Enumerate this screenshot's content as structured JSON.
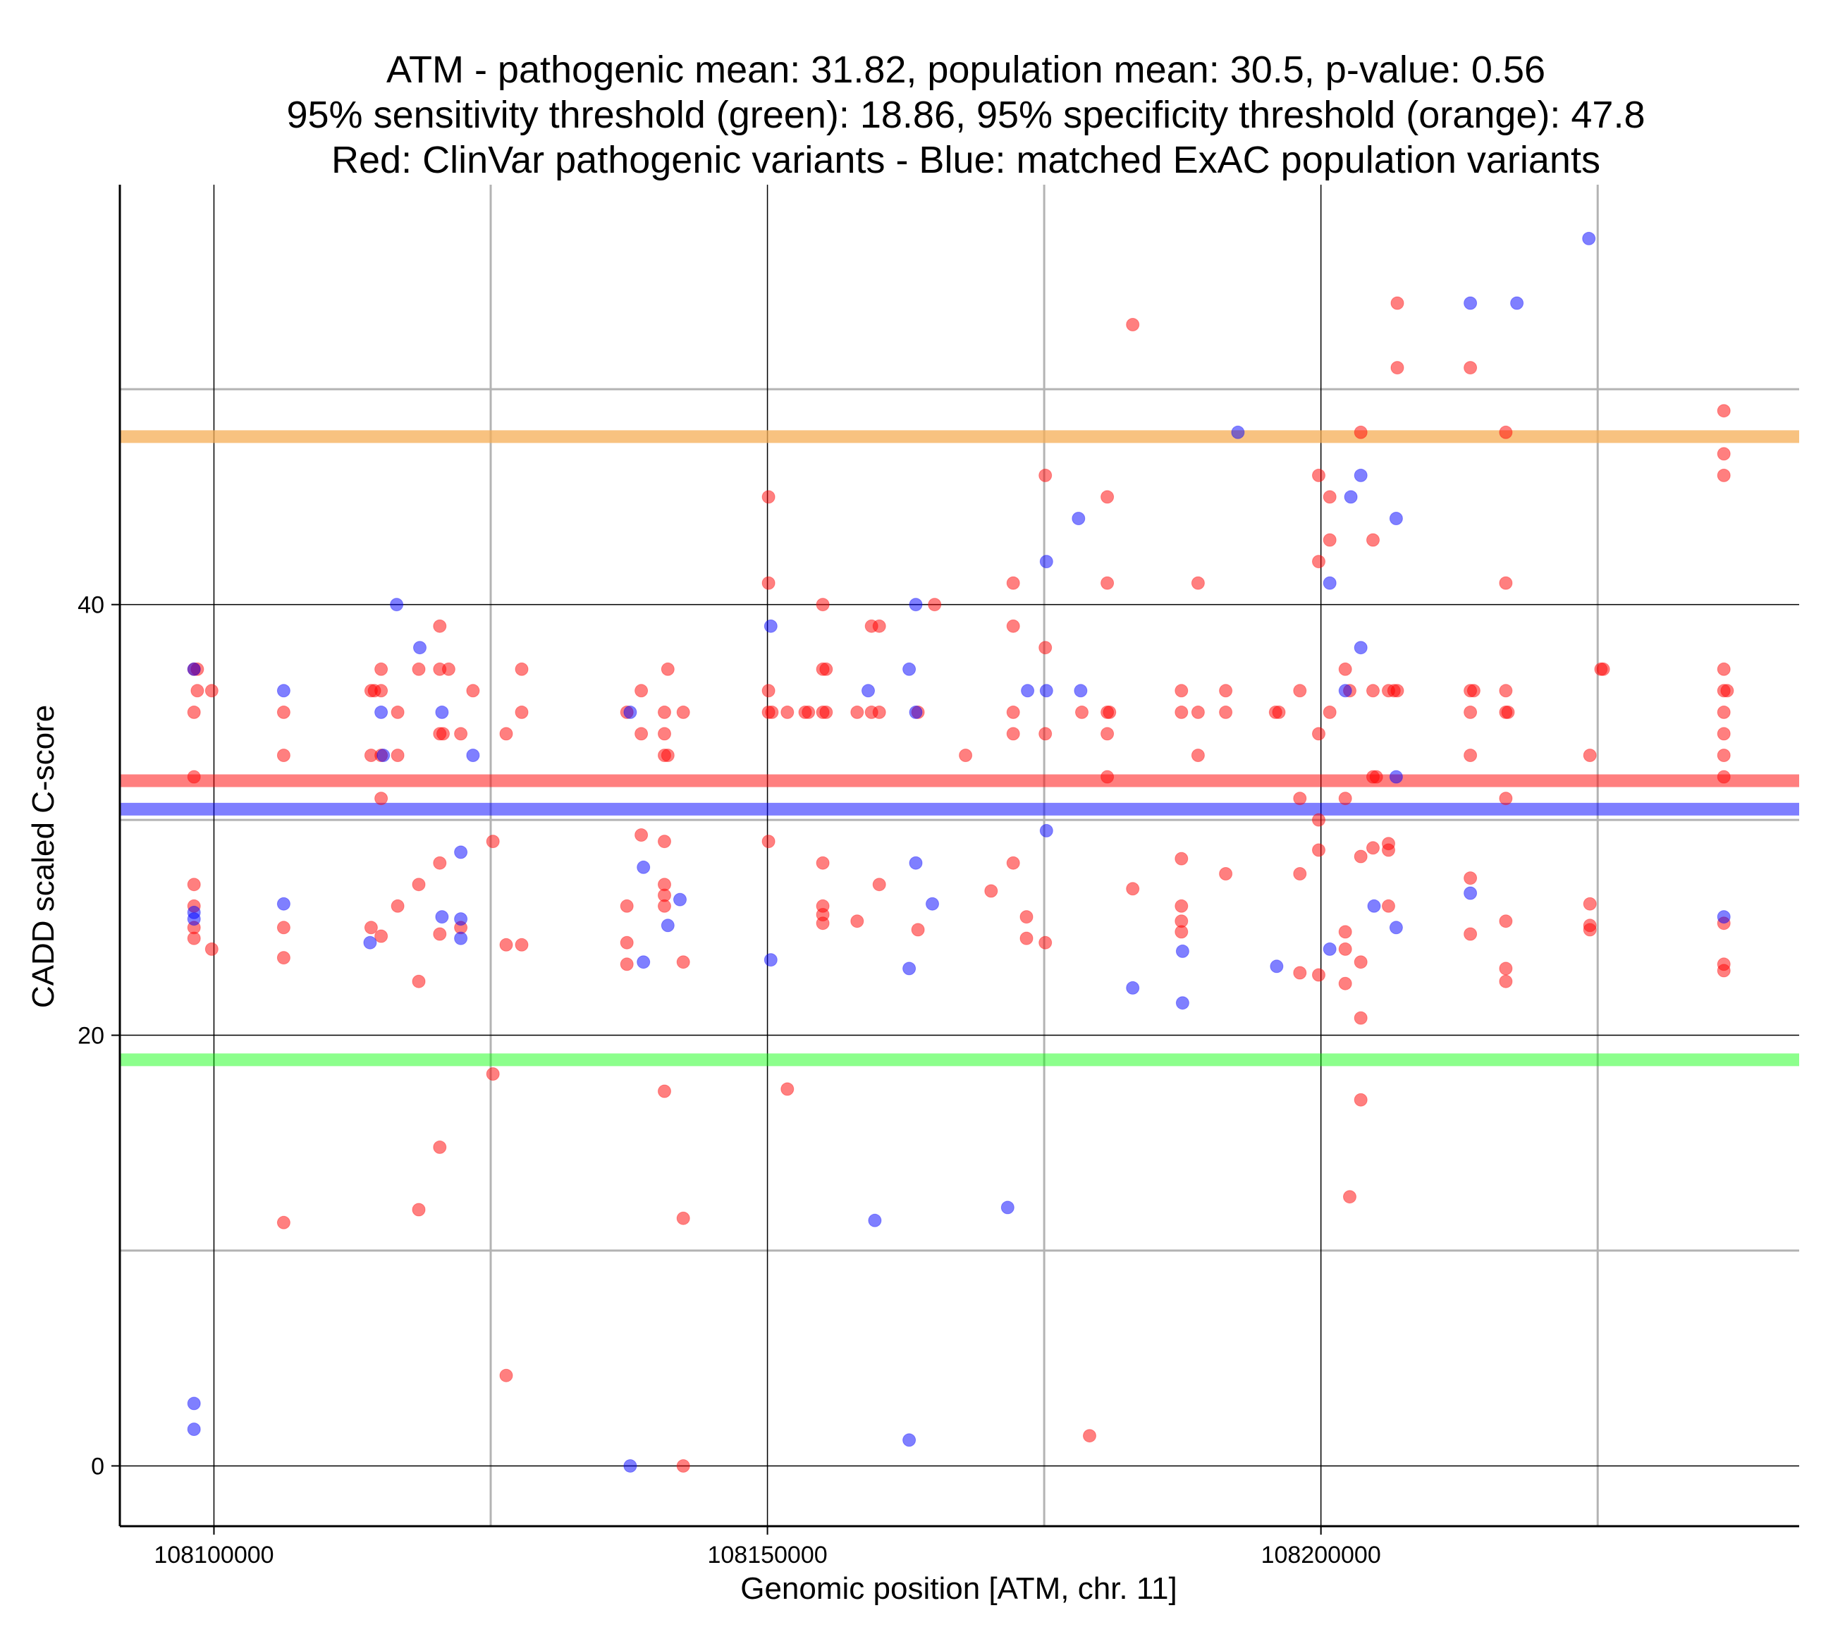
{
  "chart_data": {
    "type": "scatter",
    "title_lines": [
      "ATM - pathogenic mean: 31.82, population mean: 30.5, p-value: 0.56",
      "95% sensitivity threshold (green): 18.86, 95% specificity threshold (orange): 47.8",
      "Red: ClinVar pathogenic variants - Blue: matched ExAC population variants"
    ],
    "xlabel": "Genomic position [ATM, chr. 11]",
    "ylabel": "CADD scaled C-score",
    "xlim": [
      108091500,
      108243200
    ],
    "ylim": [
      -2.8,
      59.5
    ],
    "x_ticks": [
      108100000,
      108150000,
      108200000
    ],
    "x_tick_labels": [
      "108100000",
      "108150000",
      "108200000"
    ],
    "x_minor": [
      108125000,
      108175000,
      108225000
    ],
    "y_ticks": [
      0,
      20,
      40
    ],
    "y_tick_labels": [
      "0",
      "20",
      "40"
    ],
    "y_minor": [
      10,
      30,
      50
    ],
    "hlines": [
      {
        "name": "specificity-threshold",
        "value": 47.8,
        "color": "#f6ad55",
        "opacity": 0.75
      },
      {
        "name": "pathogenic-mean",
        "value": 31.82,
        "color": "#ff0000",
        "opacity": 0.5
      },
      {
        "name": "population-mean",
        "value": 30.5,
        "color": "#0000ff",
        "opacity": 0.5
      },
      {
        "name": "sensitivity-threshold",
        "value": 18.86,
        "color": "#00ff00",
        "opacity": 0.45
      }
    ],
    "series": [
      {
        "name": "ClinVar pathogenic",
        "color": "#ff0000",
        "points": [
          [
            108098200,
            37
          ],
          [
            108098200,
            35
          ],
          [
            108098200,
            32
          ],
          [
            108098200,
            27
          ],
          [
            108098200,
            26
          ],
          [
            108098200,
            25
          ],
          [
            108098200,
            24.5
          ],
          [
            108098500,
            37
          ],
          [
            108098500,
            36
          ],
          [
            108099800,
            36
          ],
          [
            108099800,
            24
          ],
          [
            108106300,
            35
          ],
          [
            108106300,
            33
          ],
          [
            108106300,
            25
          ],
          [
            108106300,
            23.6
          ],
          [
            108106300,
            11.3
          ],
          [
            108114200,
            36
          ],
          [
            108114200,
            33
          ],
          [
            108114200,
            25
          ],
          [
            108114500,
            36
          ],
          [
            108115100,
            37
          ],
          [
            108115100,
            36
          ],
          [
            108115100,
            33
          ],
          [
            108115100,
            31
          ],
          [
            108115100,
            24.6
          ],
          [
            108116600,
            35
          ],
          [
            108116600,
            33
          ],
          [
            108116600,
            26
          ],
          [
            108118500,
            37
          ],
          [
            108118500,
            27
          ],
          [
            108118500,
            22.5
          ],
          [
            108118500,
            11.9
          ],
          [
            108120400,
            39
          ],
          [
            108120400,
            37
          ],
          [
            108120400,
            34
          ],
          [
            108120400,
            28
          ],
          [
            108120400,
            24.7
          ],
          [
            108120400,
            14.8
          ],
          [
            108120700,
            34
          ],
          [
            108121200,
            37
          ],
          [
            108122300,
            34
          ],
          [
            108122300,
            25
          ],
          [
            108123400,
            36
          ],
          [
            108125200,
            29
          ],
          [
            108125200,
            18.2
          ],
          [
            108126400,
            34
          ],
          [
            108126400,
            24.2
          ],
          [
            108126400,
            4.2
          ],
          [
            108127800,
            37
          ],
          [
            108127800,
            35
          ],
          [
            108127800,
            24.2
          ],
          [
            108137300,
            35
          ],
          [
            108137300,
            26
          ],
          [
            108137300,
            24.3
          ],
          [
            108137300,
            23.3
          ],
          [
            108138600,
            36
          ],
          [
            108138600,
            34
          ],
          [
            108138600,
            29.3
          ],
          [
            108140700,
            35
          ],
          [
            108140700,
            34
          ],
          [
            108140700,
            33
          ],
          [
            108140700,
            29
          ],
          [
            108140700,
            27
          ],
          [
            108140700,
            26.5
          ],
          [
            108140700,
            26
          ],
          [
            108140700,
            17.4
          ],
          [
            108141000,
            37
          ],
          [
            108141000,
            33
          ],
          [
            108142400,
            35
          ],
          [
            108142400,
            23.4
          ],
          [
            108142400,
            11.5
          ],
          [
            108142400,
            0
          ],
          [
            108150100,
            45
          ],
          [
            108150100,
            41
          ],
          [
            108150100,
            36
          ],
          [
            108150100,
            35
          ],
          [
            108150100,
            29
          ],
          [
            108150400,
            35
          ],
          [
            108151800,
            35
          ],
          [
            108151800,
            17.5
          ],
          [
            108153400,
            35
          ],
          [
            108153700,
            35
          ],
          [
            108155000,
            40
          ],
          [
            108155000,
            37
          ],
          [
            108155000,
            35
          ],
          [
            108155000,
            28
          ],
          [
            108155000,
            26
          ],
          [
            108155000,
            25.6
          ],
          [
            108155000,
            25.2
          ],
          [
            108155300,
            37
          ],
          [
            108155300,
            35
          ],
          [
            108158100,
            35
          ],
          [
            108158100,
            25.3
          ],
          [
            108159400,
            35
          ],
          [
            108159400,
            39
          ],
          [
            108160100,
            39
          ],
          [
            108160100,
            35
          ],
          [
            108160100,
            27
          ],
          [
            108163600,
            35
          ],
          [
            108163600,
            24.9
          ],
          [
            108165100,
            40
          ],
          [
            108167900,
            33
          ],
          [
            108170200,
            26.7
          ],
          [
            108172200,
            41
          ],
          [
            108172200,
            39
          ],
          [
            108172200,
            35
          ],
          [
            108172200,
            34
          ],
          [
            108172200,
            28
          ],
          [
            108173400,
            25.5
          ],
          [
            108173400,
            24.5
          ],
          [
            108175100,
            46
          ],
          [
            108175100,
            38
          ],
          [
            108175100,
            34
          ],
          [
            108175100,
            24.3
          ],
          [
            108178400,
            35
          ],
          [
            108179100,
            1.4
          ],
          [
            108180700,
            45
          ],
          [
            108180700,
            41
          ],
          [
            108180700,
            35
          ],
          [
            108180700,
            34
          ],
          [
            108180700,
            32
          ],
          [
            108180900,
            35
          ],
          [
            108183000,
            53
          ],
          [
            108183000,
            26.8
          ],
          [
            108187400,
            36
          ],
          [
            108187400,
            35
          ],
          [
            108187400,
            28.2
          ],
          [
            108187400,
            26
          ],
          [
            108187400,
            25.3
          ],
          [
            108187400,
            24.8
          ],
          [
            108188900,
            41
          ],
          [
            108188900,
            35
          ],
          [
            108188900,
            33
          ],
          [
            108191400,
            36
          ],
          [
            108191400,
            35
          ],
          [
            108191400,
            27.5
          ],
          [
            108195900,
            35
          ],
          [
            108196200,
            35
          ],
          [
            108198100,
            36
          ],
          [
            108198100,
            31
          ],
          [
            108198100,
            27.5
          ],
          [
            108198100,
            22.9
          ],
          [
            108199800,
            46
          ],
          [
            108199800,
            42
          ],
          [
            108199800,
            34
          ],
          [
            108199800,
            30
          ],
          [
            108199800,
            28.6
          ],
          [
            108199800,
            22.8
          ],
          [
            108200800,
            45
          ],
          [
            108200800,
            43
          ],
          [
            108200800,
            35
          ],
          [
            108202200,
            37
          ],
          [
            108202200,
            31
          ],
          [
            108202200,
            24.8
          ],
          [
            108202200,
            24
          ],
          [
            108202200,
            22.4
          ],
          [
            108202600,
            36
          ],
          [
            108202600,
            12.5
          ],
          [
            108203600,
            48
          ],
          [
            108203600,
            28.3
          ],
          [
            108203600,
            23.4
          ],
          [
            108203600,
            20.8
          ],
          [
            108203600,
            17
          ],
          [
            108204700,
            43
          ],
          [
            108204700,
            36
          ],
          [
            108204700,
            32
          ],
          [
            108204700,
            28.7
          ],
          [
            108205000,
            32
          ],
          [
            108206100,
            36
          ],
          [
            108206100,
            28.9
          ],
          [
            108206100,
            28.6
          ],
          [
            108206100,
            26
          ],
          [
            108206600,
            36
          ],
          [
            108206900,
            54
          ],
          [
            108206900,
            51
          ],
          [
            108206900,
            36
          ],
          [
            108213500,
            51
          ],
          [
            108213500,
            36
          ],
          [
            108213500,
            35
          ],
          [
            108213500,
            33
          ],
          [
            108213500,
            27.3
          ],
          [
            108213500,
            24.7
          ],
          [
            108213800,
            36
          ],
          [
            108216700,
            48
          ],
          [
            108216700,
            41
          ],
          [
            108216700,
            36
          ],
          [
            108216700,
            35
          ],
          [
            108216700,
            31
          ],
          [
            108216700,
            25.3
          ],
          [
            108216700,
            23.1
          ],
          [
            108216700,
            22.5
          ],
          [
            108216900,
            35
          ],
          [
            108224300,
            33
          ],
          [
            108224300,
            26.1
          ],
          [
            108224300,
            25.1
          ],
          [
            108224300,
            24.9
          ],
          [
            108225300,
            37
          ],
          [
            108225500,
            37
          ],
          [
            108236400,
            49
          ],
          [
            108236400,
            47
          ],
          [
            108236400,
            46
          ],
          [
            108236400,
            37
          ],
          [
            108236400,
            36
          ],
          [
            108236400,
            35
          ],
          [
            108236400,
            34
          ],
          [
            108236400,
            33
          ],
          [
            108236400,
            32
          ],
          [
            108236400,
            25.2
          ],
          [
            108236400,
            23.3
          ],
          [
            108236400,
            23
          ],
          [
            108236700,
            36
          ]
        ]
      },
      {
        "name": "ExAC population",
        "color": "#0000ff",
        "points": [
          [
            108098200,
            37
          ],
          [
            108098200,
            25.7
          ],
          [
            108098200,
            25.4
          ],
          [
            108098200,
            2.9
          ],
          [
            108098200,
            1.7
          ],
          [
            108106300,
            36
          ],
          [
            108106300,
            26.1
          ],
          [
            108114100,
            24.3
          ],
          [
            108115100,
            35
          ],
          [
            108115300,
            33
          ],
          [
            108116500,
            40
          ],
          [
            108118600,
            38
          ],
          [
            108120600,
            35
          ],
          [
            108120600,
            25.5
          ],
          [
            108122300,
            28.5
          ],
          [
            108122300,
            25.4
          ],
          [
            108122300,
            24.5
          ],
          [
            108123400,
            33
          ],
          [
            108137600,
            35
          ],
          [
            108137600,
            0
          ],
          [
            108138800,
            27.8
          ],
          [
            108138800,
            23.4
          ],
          [
            108141000,
            25.1
          ],
          [
            108142100,
            26.3
          ],
          [
            108150300,
            39
          ],
          [
            108150300,
            23.5
          ],
          [
            108159100,
            36
          ],
          [
            108159700,
            11.4
          ],
          [
            108162800,
            37
          ],
          [
            108162800,
            23.1
          ],
          [
            108162800,
            1.2
          ],
          [
            108163400,
            40
          ],
          [
            108163400,
            35
          ],
          [
            108163400,
            28
          ],
          [
            108164900,
            26.1
          ],
          [
            108171700,
            12
          ],
          [
            108173500,
            36
          ],
          [
            108175200,
            42
          ],
          [
            108175200,
            36
          ],
          [
            108175200,
            29.5
          ],
          [
            108178300,
            36
          ],
          [
            108178100,
            44
          ],
          [
            108183000,
            22.2
          ],
          [
            108187500,
            23.9
          ],
          [
            108187500,
            21.5
          ],
          [
            108192500,
            48
          ],
          [
            108196000,
            23.2
          ],
          [
            108200800,
            41
          ],
          [
            108200800,
            24
          ],
          [
            108202200,
            36
          ],
          [
            108202700,
            45
          ],
          [
            108203600,
            46
          ],
          [
            108203600,
            38
          ],
          [
            108204800,
            26
          ],
          [
            108206800,
            44
          ],
          [
            108206800,
            32
          ],
          [
            108206800,
            25
          ],
          [
            108213500,
            54
          ],
          [
            108213500,
            26.6
          ],
          [
            108217700,
            54
          ],
          [
            108224200,
            57
          ],
          [
            108236400,
            25.5
          ]
        ]
      }
    ]
  }
}
